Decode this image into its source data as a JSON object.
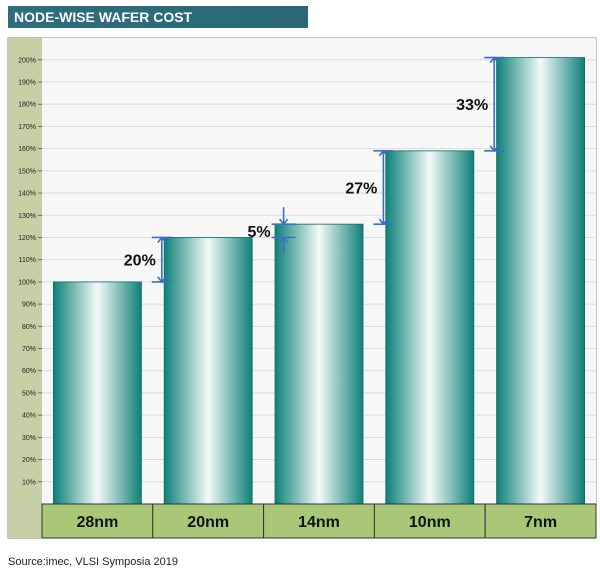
{
  "title": "NODE-WISE WAFER COST",
  "source": "Source:imec, VLSI Symposia 2019",
  "colors": {
    "title_bg": "#2d6e7e",
    "bar_dark": "#0e8079",
    "bar_light": "#f4faf8",
    "axis_panel": "#c7cfa6",
    "category_band": "#a8c878",
    "arrow": "#3a6fc4",
    "plot_bg": "#f7f7f7"
  },
  "chart_data": {
    "type": "bar",
    "categories": [
      "28nm",
      "20nm",
      "14nm",
      "10nm",
      "7nm"
    ],
    "values": [
      100,
      120,
      126,
      159,
      201
    ],
    "ylim": [
      0,
      210
    ],
    "yticks": [
      "10%",
      "20%",
      "30%",
      "40%",
      "50%",
      "60%",
      "70%",
      "80%",
      "90%",
      "100%",
      "110%",
      "120%",
      "130%",
      "140%",
      "150%",
      "160%",
      "170%",
      "180%",
      "190%",
      "200%"
    ],
    "ytick_values": [
      10,
      20,
      30,
      40,
      50,
      60,
      70,
      80,
      90,
      100,
      110,
      120,
      130,
      140,
      150,
      160,
      170,
      180,
      190,
      200
    ],
    "grid": true,
    "annotations": [
      {
        "text": "20%",
        "from": 100,
        "to": 120,
        "between": [
          0,
          1
        ]
      },
      {
        "text": "5%",
        "from": 120,
        "to": 126,
        "between": [
          1,
          2
        ]
      },
      {
        "text": "27%",
        "from": 126,
        "to": 159,
        "between": [
          2,
          3
        ]
      },
      {
        "text": "33%",
        "from": 159,
        "to": 201,
        "between": [
          3,
          4
        ]
      }
    ]
  }
}
